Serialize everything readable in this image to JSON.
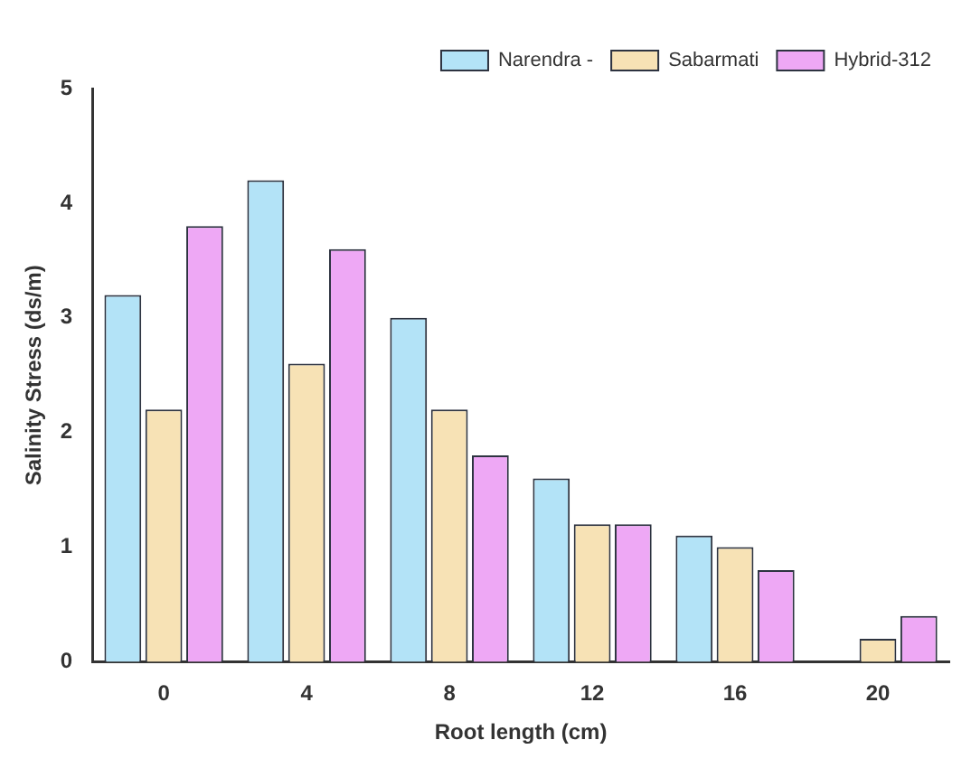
{
  "chart_data": {
    "type": "bar",
    "xlabel": "Root length (cm)",
    "ylabel": "Salinity Stress (ds/m)",
    "categories": [
      "0",
      "4",
      "8",
      "12",
      "16",
      "20"
    ],
    "series": [
      {
        "name": "Narendra -",
        "color": "#b3e3f7",
        "values": [
          3.2,
          4.2,
          3.0,
          1.6,
          1.1,
          null
        ]
      },
      {
        "name": "Sabarmati",
        "color": "#f7e2b5",
        "values": [
          2.2,
          2.6,
          2.2,
          1.2,
          1.0,
          0.2
        ]
      },
      {
        "name": "Hybrid-312",
        "color": "#eea8f5",
        "values": [
          3.8,
          3.6,
          1.8,
          1.2,
          0.8,
          0.4
        ]
      }
    ],
    "ylim": [
      0,
      5
    ],
    "yticks": [
      0,
      1,
      2,
      3,
      4,
      5
    ],
    "grid": false,
    "legend": "top right"
  }
}
